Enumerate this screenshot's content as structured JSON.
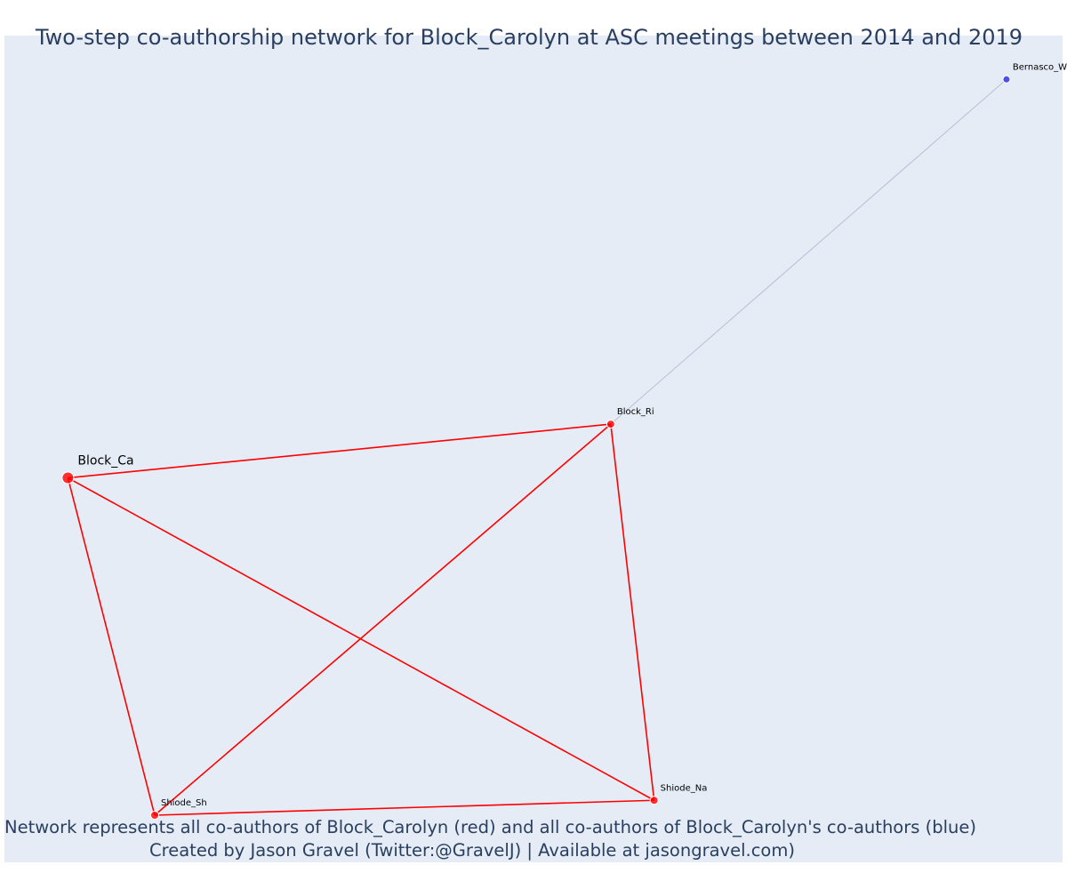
{
  "title": "Two-step co-authorship network for Block_Carolyn at ASC meetings between 2014 and 2019",
  "caption": {
    "line1": "Network represents all co-authors of Block_Carolyn (red) and all co-authors of Block_Carolyn's co-authors (blue)",
    "line2": "Created by Jason Gravel (Twitter:@GravelJ) | Available at jasongravel.com)"
  },
  "colors": {
    "plot_background": "#e5ecf6",
    "first_step": "#ff0000",
    "second_step_node": "#3333ee",
    "second_step_edge": "#b8bfd2",
    "text": "#2a3f5f"
  },
  "chart_data": {
    "type": "network",
    "xlim": [
      0,
      1
    ],
    "ylim": [
      0,
      1
    ],
    "nodes": [
      {
        "id": "block_ca",
        "label": "Block_Ca",
        "group": "ego",
        "x": 0.06,
        "y": 0.465
      },
      {
        "id": "block_ri",
        "label": "Block_Ri",
        "group": "coauthor",
        "x": 0.573,
        "y": 0.53
      },
      {
        "id": "shiode_sh",
        "label": "Shiode_Sh",
        "group": "coauthor",
        "x": 0.142,
        "y": 0.057
      },
      {
        "id": "shiode_na",
        "label": "Shiode_Na",
        "group": "coauthor",
        "x": 0.614,
        "y": 0.075
      },
      {
        "id": "bernasco_wi",
        "label": "Bernasco_Wi",
        "group": "second_step",
        "x": 0.947,
        "y": 0.947
      }
    ],
    "edges": [
      {
        "source": "block_ca",
        "target": "block_ri",
        "group": "first_step"
      },
      {
        "source": "block_ca",
        "target": "shiode_sh",
        "group": "first_step"
      },
      {
        "source": "block_ca",
        "target": "shiode_na",
        "group": "first_step"
      },
      {
        "source": "block_ri",
        "target": "shiode_sh",
        "group": "first_step"
      },
      {
        "source": "block_ri",
        "target": "shiode_na",
        "group": "first_step"
      },
      {
        "source": "shiode_sh",
        "target": "shiode_na",
        "group": "first_step"
      },
      {
        "source": "block_ri",
        "target": "bernasco_wi",
        "group": "second_step"
      }
    ]
  }
}
